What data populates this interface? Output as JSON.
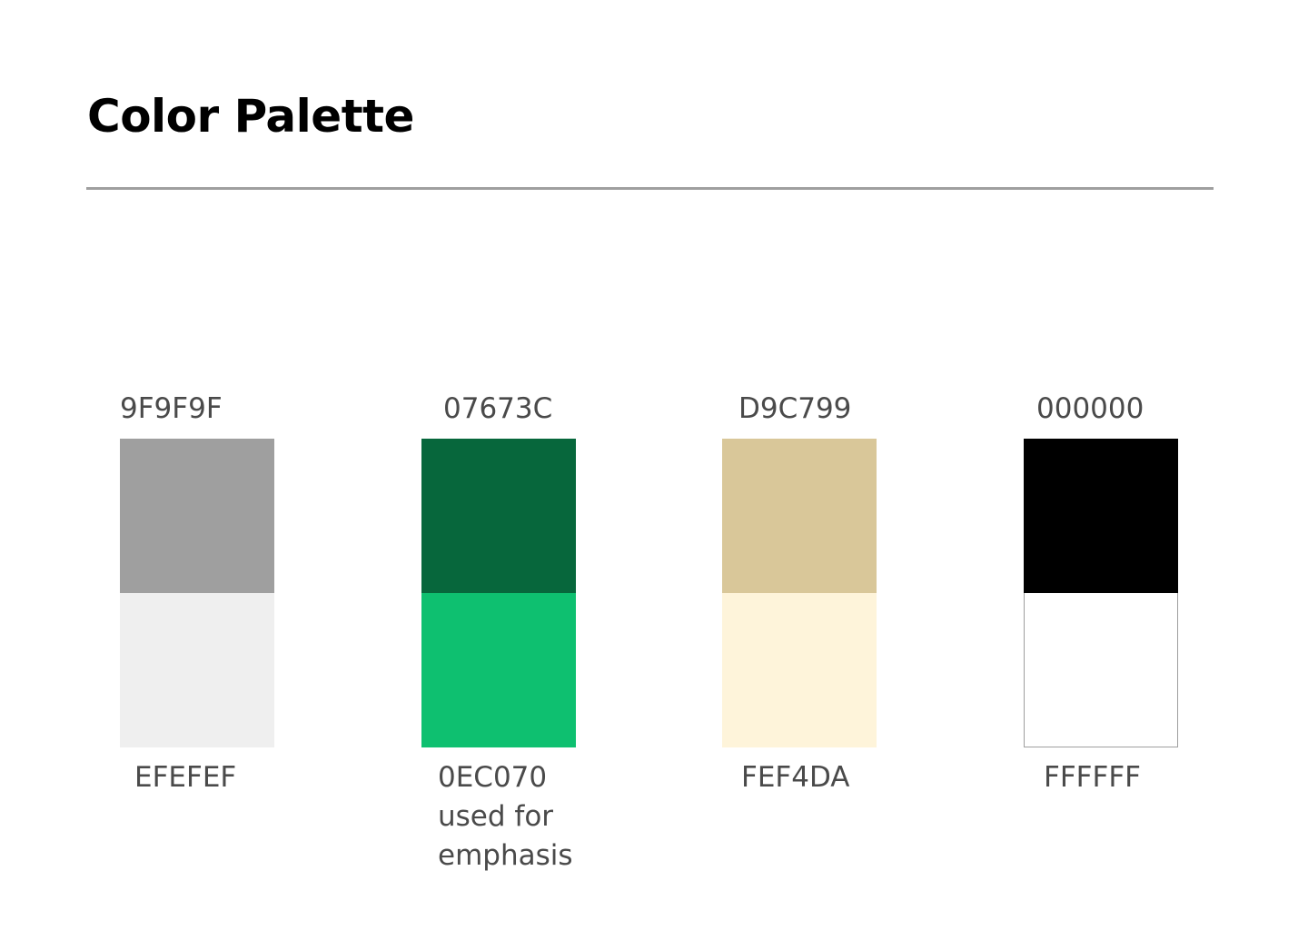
{
  "header": {
    "title": "Color Palette"
  },
  "palette": [
    {
      "primary_hex": "9F9F9F",
      "primary_color": "#9F9F9F",
      "secondary_hex": "EFEFEF",
      "secondary_color": "#EFEFEF",
      "note": ""
    },
    {
      "primary_hex": "07673C",
      "primary_color": "#07673C",
      "secondary_hex": "0EC070",
      "secondary_color": "#0EC070",
      "note": "used for emphasis"
    },
    {
      "primary_hex": "D9C799",
      "primary_color": "#D9C799",
      "secondary_hex": "FEF4DA",
      "secondary_color": "#FEF4DA",
      "note": ""
    },
    {
      "primary_hex": "000000",
      "primary_color": "#000000",
      "secondary_hex": "FFFFFF",
      "secondary_color": "#FFFFFF",
      "note": ""
    }
  ]
}
